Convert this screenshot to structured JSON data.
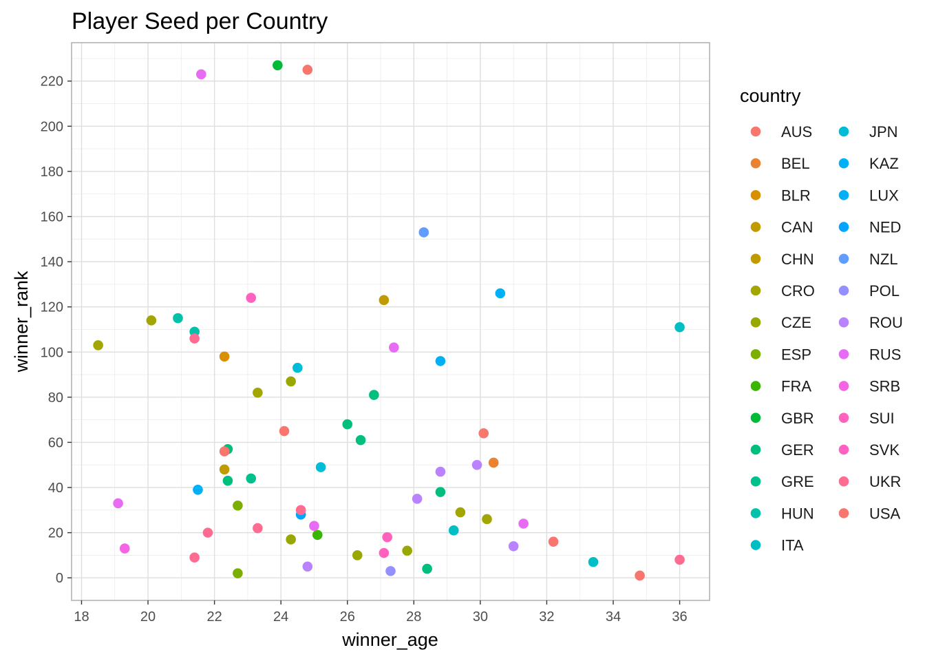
{
  "chart_data": {
    "type": "scatter",
    "title": "Player Seed per Country",
    "xlabel": "winner_age",
    "ylabel": "winner_rank",
    "xlim": [
      17.7,
      36.9
    ],
    "ylim": [
      -10,
      237
    ],
    "xticks": [
      18,
      20,
      22,
      24,
      26,
      28,
      30,
      32,
      34,
      36
    ],
    "yticks": [
      0,
      20,
      40,
      60,
      80,
      100,
      120,
      140,
      160,
      180,
      200,
      220
    ],
    "grid": true,
    "legend_title": "country",
    "legend_position": "right",
    "series": [
      {
        "name": "AUS",
        "color": "#F8766D",
        "points": [
          [
            32.2,
            16
          ]
        ]
      },
      {
        "name": "BEL",
        "color": "#EA8331",
        "points": [
          [
            30.4,
            51
          ]
        ]
      },
      {
        "name": "BLR",
        "color": "#D89000",
        "points": [
          [
            22.3,
            98
          ]
        ]
      },
      {
        "name": "CAN",
        "color": "#C09B00",
        "points": [
          [
            22.3,
            48
          ]
        ]
      },
      {
        "name": "CHN",
        "color": "#C09B00",
        "points": [
          [
            27.1,
            123
          ]
        ]
      },
      {
        "name": "CRO",
        "color": "#A3A500",
        "points": [
          [
            18.5,
            103
          ],
          [
            20.1,
            114
          ],
          [
            23.3,
            82
          ],
          [
            29.4,
            29
          ],
          [
            30.2,
            26
          ]
        ]
      },
      {
        "name": "CZE",
        "color": "#99A800",
        "points": [
          [
            24.3,
            87
          ],
          [
            24.3,
            17
          ],
          [
            26.3,
            10
          ],
          [
            27.8,
            12
          ]
        ]
      },
      {
        "name": "ESP",
        "color": "#7CAE00",
        "points": [
          [
            22.7,
            32
          ],
          [
            22.7,
            2
          ]
        ]
      },
      {
        "name": "FRA",
        "color": "#39B600",
        "points": [
          [
            25.1,
            19
          ]
        ]
      },
      {
        "name": "GBR",
        "color": "#00BA38",
        "points": [
          [
            23.9,
            227
          ]
        ]
      },
      {
        "name": "GER",
        "color": "#00BF7D",
        "points": [
          [
            22.4,
            57
          ],
          [
            22.4,
            43
          ],
          [
            26.0,
            68
          ],
          [
            26.4,
            61
          ],
          [
            26.8,
            81
          ],
          [
            28.8,
            38
          ],
          [
            28.4,
            4
          ]
        ]
      },
      {
        "name": "GRE",
        "color": "#00C08B",
        "points": [
          [
            23.1,
            44
          ]
        ]
      },
      {
        "name": "HUN",
        "color": "#00C1AA",
        "points": [
          [
            20.9,
            115
          ],
          [
            21.4,
            109
          ]
        ]
      },
      {
        "name": "ITA",
        "color": "#00BFC4",
        "points": [
          [
            36.0,
            111
          ],
          [
            33.4,
            7
          ],
          [
            29.2,
            21
          ]
        ]
      },
      {
        "name": "JPN",
        "color": "#00BCD8",
        "points": [
          [
            24.5,
            93
          ],
          [
            25.2,
            49
          ]
        ]
      },
      {
        "name": "KAZ",
        "color": "#00B0F6",
        "points": [
          [
            28.8,
            96
          ]
        ]
      },
      {
        "name": "LUX",
        "color": "#00B0F6",
        "points": [
          [
            30.6,
            126
          ],
          [
            21.5,
            39
          ]
        ]
      },
      {
        "name": "NED",
        "color": "#00A5FF",
        "points": [
          [
            24.6,
            28
          ]
        ]
      },
      {
        "name": "NZL",
        "color": "#619CFF",
        "points": [
          [
            28.3,
            153
          ]
        ]
      },
      {
        "name": "POL",
        "color": "#9590FF",
        "points": [
          [
            27.3,
            3
          ]
        ]
      },
      {
        "name": "ROU",
        "color": "#B983FF",
        "points": [
          [
            28.8,
            47
          ],
          [
            29.9,
            50
          ],
          [
            28.1,
            35
          ],
          [
            31.0,
            14
          ],
          [
            24.8,
            5
          ]
        ]
      },
      {
        "name": "RUS",
        "color": "#E76BF3",
        "points": [
          [
            21.6,
            223
          ],
          [
            19.1,
            33
          ],
          [
            27.4,
            102
          ],
          [
            25.0,
            23
          ],
          [
            31.3,
            24
          ]
        ]
      },
      {
        "name": "SRB",
        "color": "#F564E3",
        "points": [
          [
            19.3,
            13
          ]
        ]
      },
      {
        "name": "SUI",
        "color": "#FF62BC",
        "points": [
          [
            27.2,
            18
          ],
          [
            27.1,
            11
          ]
        ]
      },
      {
        "name": "SVK",
        "color": "#FF61C3",
        "points": [
          [
            23.1,
            124
          ]
        ]
      },
      {
        "name": "UKR",
        "color": "#FF6C91",
        "points": [
          [
            21.4,
            106
          ],
          [
            21.8,
            20
          ],
          [
            21.4,
            9
          ],
          [
            23.3,
            22
          ],
          [
            24.6,
            30
          ],
          [
            36.0,
            8
          ]
        ]
      },
      {
        "name": "USA",
        "color": "#F8766D",
        "points": [
          [
            24.8,
            225
          ],
          [
            24.1,
            65
          ],
          [
            22.3,
            56
          ],
          [
            30.1,
            64
          ],
          [
            34.8,
            1
          ]
        ]
      }
    ]
  }
}
